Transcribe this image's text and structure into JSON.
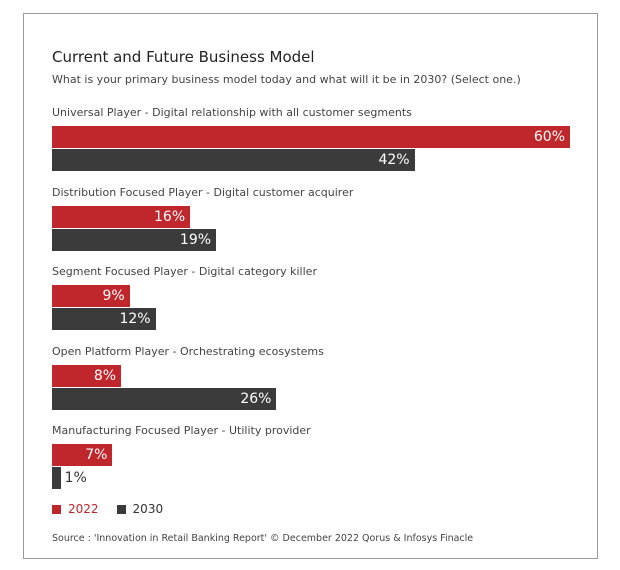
{
  "chart_data": {
    "type": "bar",
    "orientation": "horizontal",
    "title": "Current and Future Business Model",
    "subtitle": "What is your primary business model today and what will it be in 2030? (Select one.)",
    "categories": [
      "Universal Player - Digital relationship with all customer segments",
      "Distribution Focused Player - Digital customer acquirer",
      "Segment Focused Player - Digital category killer",
      "Open Platform Player - Orchestrating ecosystems",
      "Manufacturing Focused Player - Utility provider"
    ],
    "series": [
      {
        "name": "2022",
        "color": "#c0272d",
        "values": [
          60,
          16,
          9,
          8,
          7
        ]
      },
      {
        "name": "2030",
        "color": "#3b3b3b",
        "values": [
          42,
          19,
          12,
          26,
          1
        ]
      }
    ],
    "value_suffix": "%",
    "xlim": [
      0,
      60
    ],
    "grid": false,
    "legend_position": "bottom-left",
    "source": "Source : 'Innovation in Retail Banking Report' © December 2022 Qorus & Infosys Finacle"
  }
}
